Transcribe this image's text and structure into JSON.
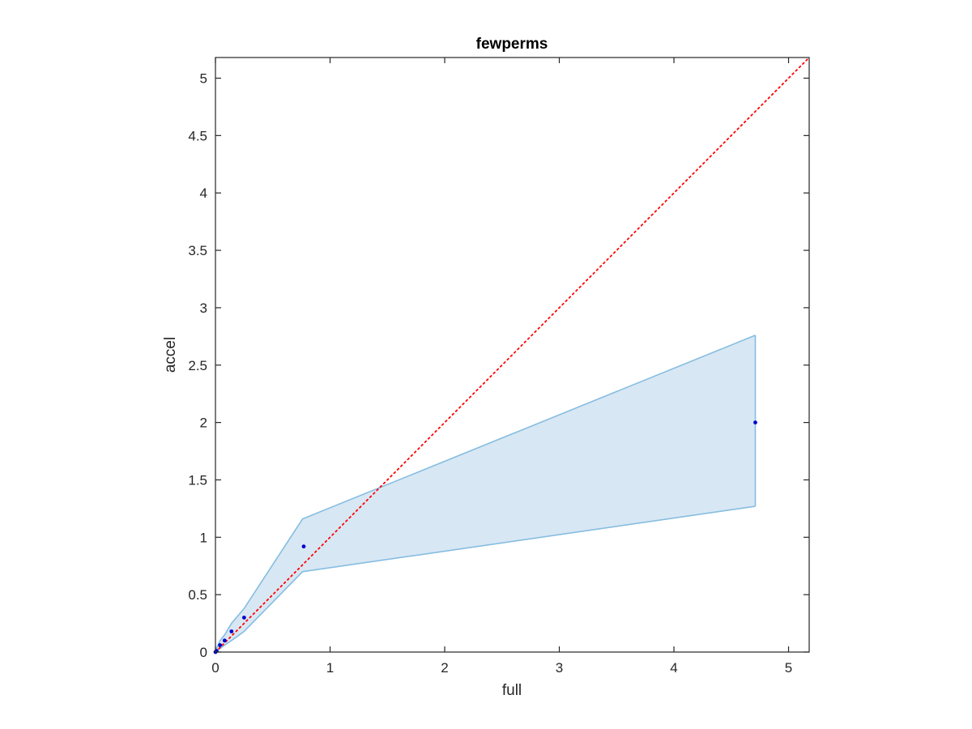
{
  "chart_data": {
    "type": "scatter",
    "title": "fewperms",
    "xlabel": "full",
    "ylabel": "accel",
    "xlim": [
      0,
      5.18
    ],
    "ylim": [
      0,
      5.18
    ],
    "xticks": [
      0,
      1,
      2,
      3,
      4,
      5
    ],
    "yticks": [
      0,
      0.5,
      1,
      1.5,
      2,
      2.5,
      3,
      3.5,
      4,
      4.5,
      5
    ],
    "xtick_labels": [
      "0",
      "1",
      "2",
      "3",
      "4",
      "5"
    ],
    "ytick_labels": [
      "0",
      "0.5",
      "1",
      "1.5",
      "2",
      "2.5",
      "3",
      "3.5",
      "4",
      "4.5",
      "5"
    ],
    "grid": false,
    "points": {
      "x": [
        0.0,
        0.01,
        0.04,
        0.08,
        0.14,
        0.25,
        0.77,
        4.71
      ],
      "y": [
        0.0,
        0.01,
        0.06,
        0.1,
        0.18,
        0.3,
        0.92,
        2.0
      ]
    },
    "band": {
      "x": [
        0.0,
        0.04,
        0.08,
        0.14,
        0.25,
        0.76,
        4.71
      ],
      "upper": [
        0.01,
        0.1,
        0.15,
        0.25,
        0.38,
        1.16,
        2.76
      ],
      "lower": [
        0.0,
        0.03,
        0.06,
        0.1,
        0.18,
        0.7,
        1.27
      ]
    },
    "reference_line": {
      "style": "dotted",
      "x": [
        0,
        5.18
      ],
      "y": [
        0,
        5.18
      ]
    },
    "colors": {
      "points": "#0000cc",
      "band_fill": "#d8e7f4",
      "band_edge": "#86bde0",
      "reference_line": "#ff0000",
      "axes": "#262626"
    }
  }
}
